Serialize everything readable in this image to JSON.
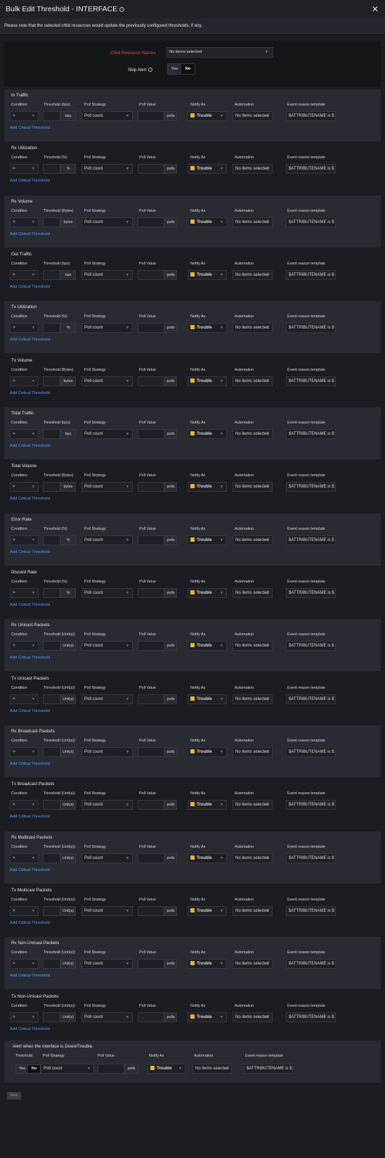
{
  "dialog": {
    "title": "Bulk Edit Threshold - INTERFACE",
    "info_icon": "info-icon",
    "close_icon": "close-icon",
    "note": "Please note that the selected child resources would update the previously configured thresholds, if any."
  },
  "top_form": {
    "child_label": "Child Resource Names",
    "child_value": "No items selected",
    "skip_label": "Skip Alert",
    "skip_yes": "Yes",
    "skip_no": "No"
  },
  "columns": {
    "condition": "Condition",
    "poll_strategy": "Poll Strategy",
    "poll_value": "Poll Value",
    "notify_as": "Notify As",
    "automation": "Automation",
    "event_template": "Event reason template",
    "threshold": "Threshold"
  },
  "defaults": {
    "condition": ">",
    "strategy": "Poll count",
    "polls": "polls",
    "notify": "Trouble",
    "automation": "No items selected",
    "template": "$ATTRIBUTENAME is $",
    "add_link": "Add Critical Threshold",
    "trouble_color": "#e8b52e"
  },
  "sections": [
    {
      "title": "In Traffic",
      "threshold_label": "Threshold (bps)",
      "unit": "bps"
    },
    {
      "title": "Rx Utilization",
      "threshold_label": "Threshold (%)",
      "unit": "%"
    },
    {
      "title": "Rx Volume",
      "threshold_label": "Threshold (Bytes)",
      "unit": "bytes"
    },
    {
      "title": "Out Traffic",
      "threshold_label": "Threshold (bps)",
      "unit": "bps"
    },
    {
      "title": "Tx Utilization",
      "threshold_label": "Threshold (%)",
      "unit": "%"
    },
    {
      "title": "Tx Volume",
      "threshold_label": "Threshold (Bytes)",
      "unit": "bytes"
    },
    {
      "title": "Total Traffic",
      "threshold_label": "Threshold (bps)",
      "unit": "bps"
    },
    {
      "title": "Total Volume",
      "threshold_label": "Threshold (Bytes)",
      "unit": "bytes"
    },
    {
      "title": "Error Rate",
      "threshold_label": "Threshold (%)",
      "unit": "%"
    },
    {
      "title": "Discard Rate",
      "threshold_label": "Threshold (%)",
      "unit": "%"
    },
    {
      "title": "Rx Unicast Packets",
      "threshold_label": "Threshold (Unit(s))",
      "unit": "Unit(s)"
    },
    {
      "title": "Tx Unicast Packets",
      "threshold_label": "Threshold (Unit(s))",
      "unit": "Unit(s)"
    },
    {
      "title": "Rx Broadcast Packets",
      "threshold_label": "Threshold (Unit(s))",
      "unit": "Unit(s)"
    },
    {
      "title": "Tx Broadcast Packets",
      "threshold_label": "Threshold (Unit(s))",
      "unit": "Unit(s)"
    },
    {
      "title": "Rx Multicast Packets",
      "threshold_label": "Threshold (Unit(s))",
      "unit": "Unit(s)"
    },
    {
      "title": "Tx Multicast Packets",
      "threshold_label": "Threshold (Unit(s))",
      "unit": "Unit(s)"
    },
    {
      "title": "Rx Non-Unicast Packets",
      "threshold_label": "Threshold (Unit(s))",
      "unit": "Unit(s)"
    },
    {
      "title": "Tx Non-Unicast Packets",
      "threshold_label": "Threshold (Unit(s))",
      "unit": "Unit(s)"
    }
  ],
  "alert_section": {
    "title": "Alert when the interface is Down/Trouble.",
    "yes": "Yes",
    "no": "No"
  },
  "footer": {
    "save_label": "Save"
  }
}
